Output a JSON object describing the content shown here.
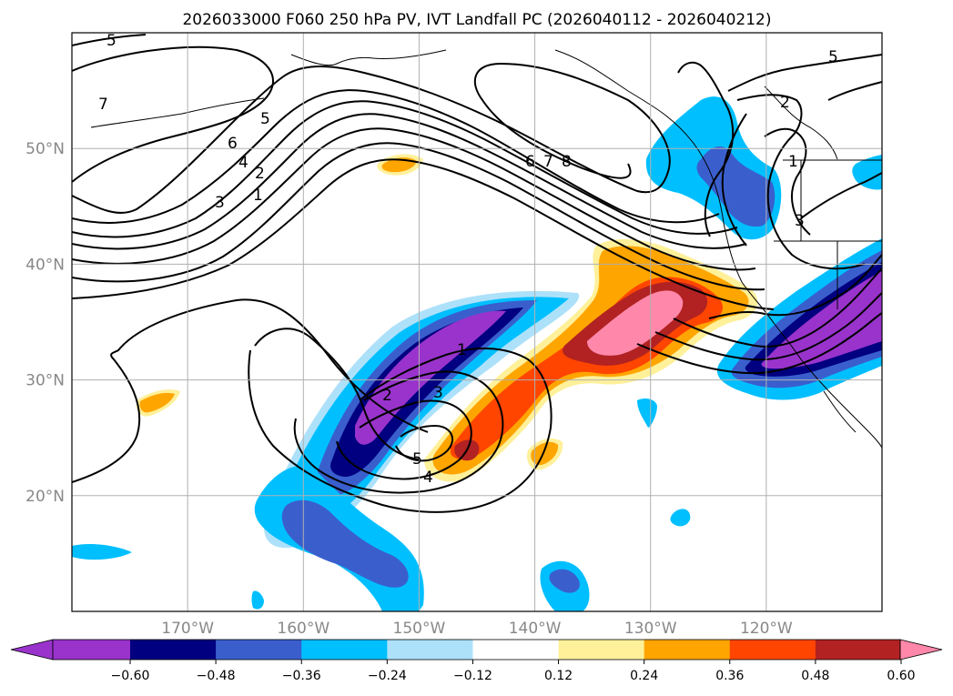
{
  "chart_data": {
    "type": "map",
    "title": "2026033000 F060 250 hPa PV, IVT Landfall PC (2026040112 - 2026040212)",
    "lon_range": [
      -180,
      -110
    ],
    "lat_range": [
      10,
      60
    ],
    "lon_ticks": [
      -170,
      -160,
      -150,
      -140,
      -130,
      -120
    ],
    "lat_ticks": [
      20,
      30,
      40,
      50
    ],
    "lon_tick_labels": [
      "170°W",
      "160°W",
      "150°W",
      "140°W",
      "130°W",
      "120°W"
    ],
    "lat_tick_labels": [
      "20°N",
      "30°N",
      "40°N",
      "50°N"
    ],
    "grid": true,
    "contour_levels": [
      "1",
      "2",
      "3",
      "4",
      "5",
      "6",
      "7",
      "8"
    ],
    "colorbar": {
      "extend": "both",
      "ticks": [
        "−0.60",
        "−0.48",
        "−0.36",
        "−0.24",
        "−0.12",
        "0.12",
        "0.24",
        "0.36",
        "0.48",
        "0.60"
      ],
      "colors": [
        "#9933cc",
        "#000080",
        "#3a5fcd",
        "#00bfff",
        "#ade1fa",
        "#ffffff",
        "#fff09a",
        "#ffa500",
        "#ff4500",
        "#b22222",
        "#ff88aa"
      ]
    },
    "series": [
      {
        "name": "neg_high",
        "color": "#9933cc",
        "value": -0.66
      },
      {
        "name": "pos_high",
        "color": "#ff88aa",
        "value": 0.66
      }
    ]
  }
}
